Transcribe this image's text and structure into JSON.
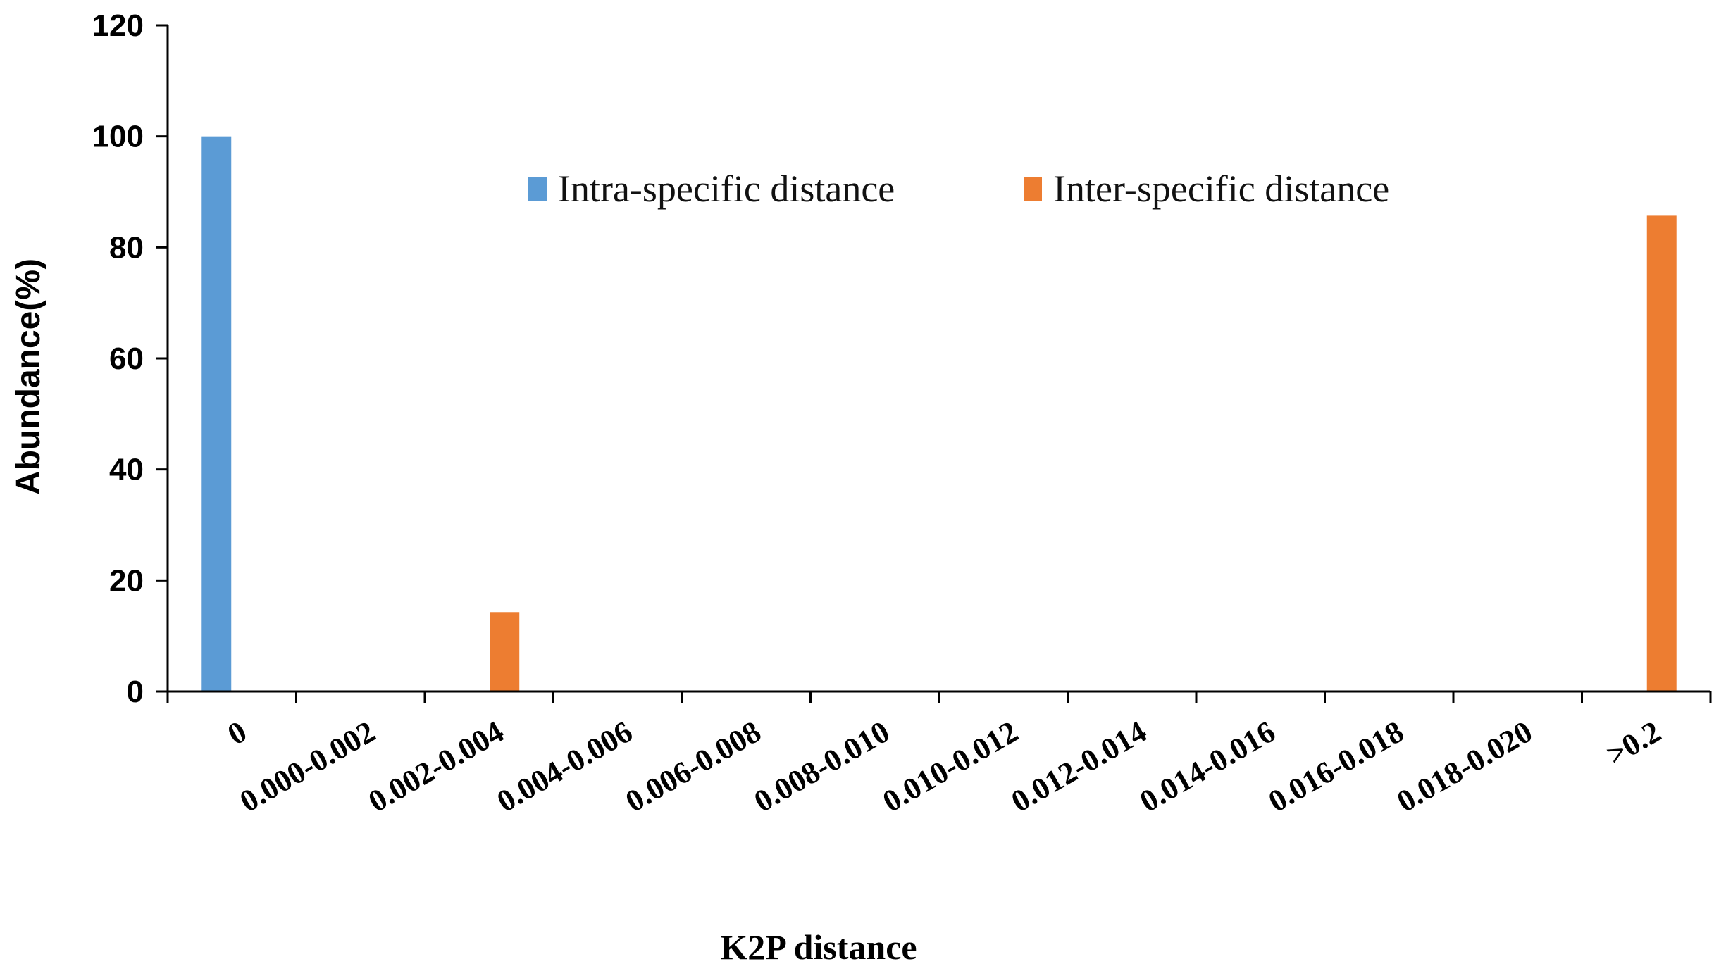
{
  "chart_data": {
    "type": "bar",
    "categories": [
      "0",
      "0.000-0.002",
      "0.002-0.004",
      "0.004-0.006",
      "0.006-0.008",
      "0.008-0.010",
      "0.010-0.012",
      "0.012-0.014",
      "0.014-0.016",
      "0.016-0.018",
      "0.018-0.020",
      ">0.2"
    ],
    "series": [
      {
        "name": "Intra-specific distance",
        "color": "#5B9BD5",
        "values": [
          100,
          0,
          0,
          0,
          0,
          0,
          0,
          0,
          0,
          0,
          0,
          0
        ]
      },
      {
        "name": "Inter-specific distance",
        "color": "#ED7D31",
        "values": [
          0,
          0,
          14.3,
          0,
          0,
          0,
          0,
          0,
          0,
          0,
          0,
          85.7
        ]
      }
    ],
    "xlabel": "K2P distance",
    "ylabel": "Abundance(%)",
    "ylim": [
      0,
      120
    ],
    "yticks": [
      0,
      20,
      40,
      60,
      80,
      100,
      120
    ],
    "grid": false,
    "legend": "top-center"
  }
}
